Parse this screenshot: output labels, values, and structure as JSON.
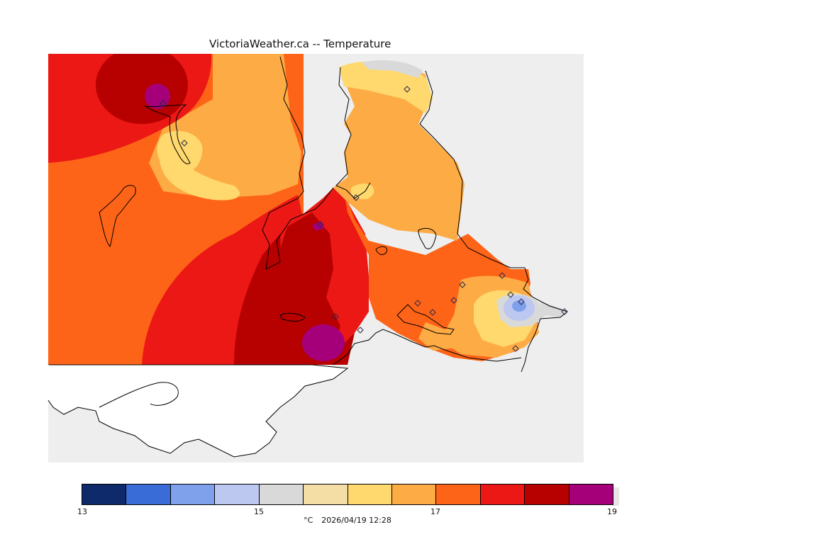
{
  "title": "VictoriaWeather.ca -- Temperature",
  "legend": {
    "unit": "°C",
    "timestamp": "2026/04/19 12:28",
    "ticks": [
      "13",
      "15",
      "17",
      "19"
    ],
    "bins": [
      {
        "range": "13.0-13.5",
        "color": "#0e2a6b"
      },
      {
        "range": "13.5-14.0",
        "color": "#3a6cd8"
      },
      {
        "range": "14.0-14.5",
        "color": "#7fa0ea"
      },
      {
        "range": "14.5-15.0",
        "color": "#bcc8f0"
      },
      {
        "range": "15.0-15.5",
        "color": "#d9d9d9"
      },
      {
        "range": "15.5-16.0",
        "color": "#f4dea6"
      },
      {
        "range": "16.0-16.5",
        "color": "#ffd86e"
      },
      {
        "range": "16.5-17.0",
        "color": "#fdab45"
      },
      {
        "range": "17.0-17.5",
        "color": "#fe6418"
      },
      {
        "range": "17.5-18.0",
        "color": "#ec1815"
      },
      {
        "range": "18.0-18.5",
        "color": "#b70000"
      },
      {
        "range": "18.5-19.0",
        "color": "#a5007a"
      }
    ]
  },
  "map": {
    "background_sea": "#eeeeee",
    "land_outside_domain": "#ffffff",
    "station_marker": "diamond",
    "station_count": 15
  }
}
